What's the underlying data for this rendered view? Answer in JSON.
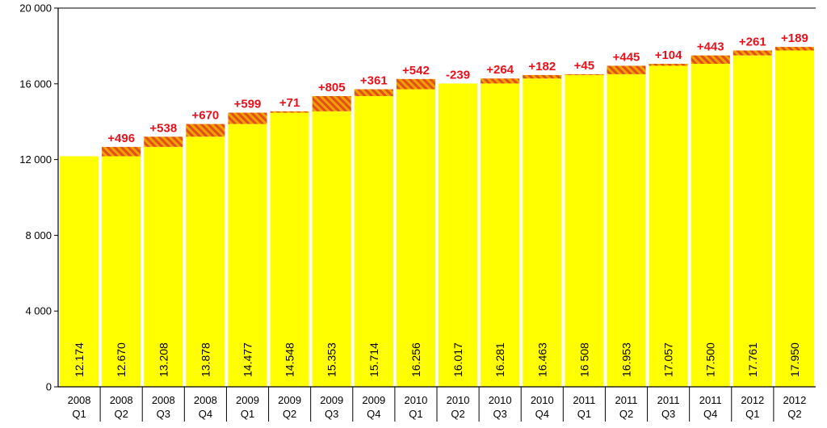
{
  "chart_data": {
    "type": "bar",
    "stacked": true,
    "grid": false,
    "legend": "none",
    "ylim": [
      0,
      20000
    ],
    "y_ticks": [
      0,
      4000,
      8000,
      12000,
      16000,
      20000
    ],
    "y_tick_labels": [
      "0",
      "4 000",
      "8 000",
      "12 000",
      "16 000",
      "20 000"
    ],
    "categories": [
      [
        "2008",
        "Q1"
      ],
      [
        "2008",
        "Q2"
      ],
      [
        "2008",
        "Q3"
      ],
      [
        "2008",
        "Q4"
      ],
      [
        "2009",
        "Q1"
      ],
      [
        "2009",
        "Q2"
      ],
      [
        "2009",
        "Q3"
      ],
      [
        "2009",
        "Q4"
      ],
      [
        "2010",
        "Q1"
      ],
      [
        "2010",
        "Q2"
      ],
      [
        "2010",
        "Q3"
      ],
      [
        "2010",
        "Q4"
      ],
      [
        "2011",
        "Q1"
      ],
      [
        "2011",
        "Q2"
      ],
      [
        "2011",
        "Q3"
      ],
      [
        "2011",
        "Q4"
      ],
      [
        "2012",
        "Q1"
      ],
      [
        "2012",
        "Q2"
      ]
    ],
    "values": [
      12174,
      12670,
      13208,
      13878,
      14477,
      14548,
      15353,
      15714,
      16256,
      16017,
      16281,
      16463,
      16508,
      16953,
      17057,
      17500,
      17761,
      17950
    ],
    "value_labels": [
      "12.174",
      "12.670",
      "13.208",
      "13.878",
      "14.477",
      "14.548",
      "15.353",
      "15.714",
      "16.256",
      "16.017",
      "16.281",
      "16.463",
      "16 508",
      "16.953",
      "17.057",
      "17.500",
      "17.761",
      "17.950"
    ],
    "change_labels": [
      "",
      "+496",
      "+538",
      "+670",
      "+599",
      "+71",
      "+805",
      "+361",
      "+542",
      "-239",
      "+264",
      "+182",
      "+45",
      "+445",
      "+104",
      "+443",
      "+261",
      "+189"
    ],
    "colors": {
      "bar": "#ffff00",
      "increase_fill": "#f0a000",
      "increase_hatch": "#e0501a",
      "change_label": "#e8101a",
      "axis": "#000000",
      "text": "#000000",
      "separator": "#ffffff"
    }
  }
}
